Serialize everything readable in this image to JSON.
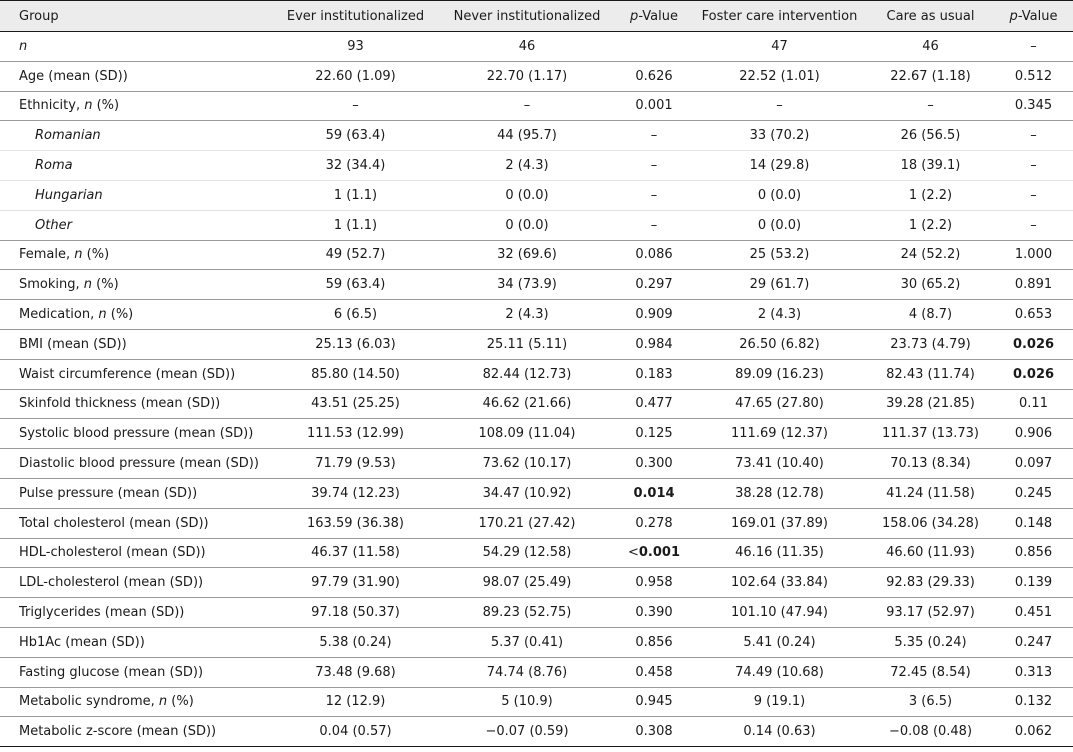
{
  "header": {
    "group": "Group",
    "ever": "Ever institutionalized",
    "never": "Never institutionalized",
    "p_italic": "p",
    "p_suffix": "-Value",
    "foster": "Foster care intervention",
    "cau": "Care as usual"
  },
  "rows": [
    {
      "label": "n",
      "ever": "93",
      "never": "46",
      "p1": "",
      "foster": "47",
      "cau": "46",
      "p2": "–"
    },
    {
      "label": "Age (mean (SD))",
      "ever": "22.60 (1.09)",
      "never": "22.70 (1.17)",
      "p1": "0.626",
      "foster": "22.52 (1.01)",
      "cau": "22.67 (1.18)",
      "p2": "0.512"
    },
    {
      "label": "Ethnicity, ",
      "label_it": "n",
      "label_post": " (%)",
      "ever": "–",
      "never": "–",
      "p1": "0.001",
      "foster": "–",
      "cau": "–",
      "p2": "0.345"
    },
    {
      "label": "Romanian",
      "ever": "59 (63.4)",
      "never": "44 (95.7)",
      "p1": "–",
      "foster": "33 (70.2)",
      "cau": "26 (56.5)",
      "p2": "–"
    },
    {
      "label": "Roma",
      "ever": "32 (34.4)",
      "never": "2 (4.3)",
      "p1": "–",
      "foster": "14 (29.8)",
      "cau": "18 (39.1)",
      "p2": "–"
    },
    {
      "label": "Hungarian",
      "ever": "1 (1.1)",
      "never": "0 (0.0)",
      "p1": "–",
      "foster": "0 (0.0)",
      "cau": "1 (2.2)",
      "p2": "–"
    },
    {
      "label": "Other",
      "ever": "1 (1.1)",
      "never": "0 (0.0)",
      "p1": "–",
      "foster": "0 (0.0)",
      "cau": "1 (2.2)",
      "p2": "–"
    },
    {
      "label": "Female, ",
      "label_it": "n",
      "label_post": " (%)",
      "ever": "49 (52.7)",
      "never": "32 (69.6)",
      "p1": "0.086",
      "foster": "25 (53.2)",
      "cau": "24 (52.2)",
      "p2": "1.000"
    },
    {
      "label": "Smoking, ",
      "label_it": "n",
      "label_post": " (%)",
      "ever": "59 (63.4)",
      "never": "34 (73.9)",
      "p1": "0.297",
      "foster": "29 (61.7)",
      "cau": "30 (65.2)",
      "p2": "0.891"
    },
    {
      "label": "Medication, ",
      "label_it": "n",
      "label_post": " (%)",
      "ever": "6 (6.5)",
      "never": "2 (4.3)",
      "p1": "0.909",
      "foster": "2 (4.3)",
      "cau": "4 (8.7)",
      "p2": "0.653"
    },
    {
      "label": "BMI (mean (SD))",
      "ever": "25.13 (6.03)",
      "never": "25.11 (5.11)",
      "p1": "0.984",
      "foster": "26.50 (6.82)",
      "cau": "23.73 (4.79)",
      "p2": "0.026"
    },
    {
      "label": "Waist circumference (mean (SD))",
      "ever": "85.80 (14.50)",
      "never": "82.44 (12.73)",
      "p1": "0.183",
      "foster": "89.09 (16.23)",
      "cau": "82.43 (11.74)",
      "p2": "0.026"
    },
    {
      "label": "Skinfold thickness (mean (SD))",
      "ever": "43.51 (25.25)",
      "never": "46.62 (21.66)",
      "p1": "0.477",
      "foster": "47.65 (27.80)",
      "cau": "39.28 (21.85)",
      "p2": "0.11"
    },
    {
      "label": "Systolic blood pressure (mean (SD))",
      "ever": "111.53 (12.99)",
      "never": "108.09 (11.04)",
      "p1": "0.125",
      "foster": "111.69 (12.37)",
      "cau": "111.37 (13.73)",
      "p2": "0.906"
    },
    {
      "label": "Diastolic blood pressure (mean (SD))",
      "ever": "71.79 (9.53)",
      "never": "73.62 (10.17)",
      "p1": "0.300",
      "foster": "73.41 (10.40)",
      "cau": "70.13 (8.34)",
      "p2": "0.097"
    },
    {
      "label": "Pulse pressure (mean (SD))",
      "ever": "39.74 (12.23)",
      "never": "34.47 (10.92)",
      "p1": "0.014",
      "foster": "38.28 (12.78)",
      "cau": "41.24 (11.58)",
      "p2": "0.245"
    },
    {
      "label": "Total cholesterol (mean (SD))",
      "ever": "163.59 (36.38)",
      "never": "170.21 (27.42)",
      "p1": "0.278",
      "foster": "169.01 (37.89)",
      "cau": "158.06 (34.28)",
      "p2": "0.148"
    },
    {
      "label": "HDL-cholesterol (mean (SD))",
      "ever": "46.37 (11.58)",
      "never": "54.29 (12.58)",
      "p1_prefix": "<",
      "p1": "0.001",
      "foster": "46.16 (11.35)",
      "cau": "46.60 (11.93)",
      "p2": "0.856"
    },
    {
      "label": "LDL-cholesterol (mean (SD))",
      "ever": "97.79 (31.90)",
      "never": "98.07 (25.49)",
      "p1": "0.958",
      "foster": "102.64 (33.84)",
      "cau": "92.83 (29.33)",
      "p2": "0.139"
    },
    {
      "label": "Triglycerides (mean (SD))",
      "ever": "97.18 (50.37)",
      "never": "89.23 (52.75)",
      "p1": "0.390",
      "foster": "101.10 (47.94)",
      "cau": "93.17 (52.97)",
      "p2": "0.451"
    },
    {
      "label": "Hb1Ac (mean (SD))",
      "ever": "5.38 (0.24)",
      "never": "5.37 (0.41)",
      "p1": "0.856",
      "foster": "5.41 (0.24)",
      "cau": "5.35 (0.24)",
      "p2": "0.247"
    },
    {
      "label": "Fasting glucose (mean (SD))",
      "ever": "73.48 (9.68)",
      "never": "74.74 (8.76)",
      "p1": "0.458",
      "foster": "74.49 (10.68)",
      "cau": "72.45 (8.54)",
      "p2": "0.313"
    },
    {
      "label": "Metabolic syndrome, ",
      "label_it": "n",
      "label_post": " (%)",
      "ever": "12 (12.9)",
      "never": "5 (10.9)",
      "p1": "0.945",
      "foster": "9 (19.1)",
      "cau": "3 (6.5)",
      "p2": "0.132"
    },
    {
      "label": "Metabolic z-score (mean (SD))",
      "ever": "0.04 (0.57)",
      "never": "−0.07 (0.59)",
      "p1": "0.308",
      "foster": "0.14 (0.63)",
      "cau": "−0.08 (0.48)",
      "p2": "0.062"
    }
  ]
}
